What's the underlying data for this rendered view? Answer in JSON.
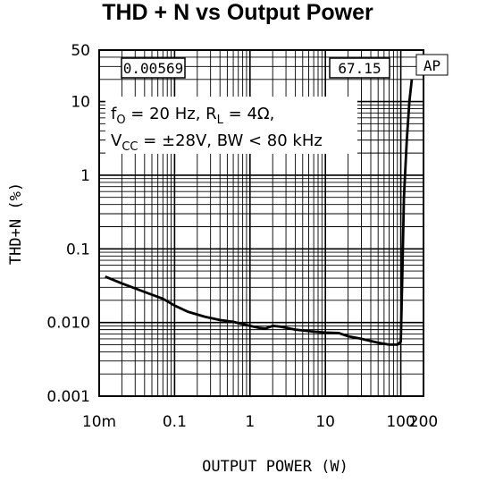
{
  "chart_data": {
    "type": "line",
    "title": "THD + N vs Output Power",
    "xlabel": "OUTPUT POWER (W)",
    "ylabel": "THD+N (%)",
    "xscale": "log",
    "yscale": "log",
    "xlim": [
      0.01,
      200
    ],
    "ylim": [
      0.001,
      50
    ],
    "xticks": [
      {
        "value": 0.01,
        "label": "10m"
      },
      {
        "value": 0.1,
        "label": "0.1"
      },
      {
        "value": 1,
        "label": "1"
      },
      {
        "value": 10,
        "label": "10"
      },
      {
        "value": 100,
        "label": "100"
      },
      {
        "value": 200,
        "label": "200"
      }
    ],
    "yticks": [
      {
        "value": 50,
        "label": "50"
      },
      {
        "value": 10,
        "label": "10"
      },
      {
        "value": 1,
        "label": "1"
      },
      {
        "value": 0.1,
        "label": "0.1"
      },
      {
        "value": 0.01,
        "label": "0.010"
      },
      {
        "value": 0.001,
        "label": "0.001"
      }
    ],
    "grid": true,
    "series": [
      {
        "x": [
          0.012,
          0.02,
          0.04,
          0.07,
          0.1,
          0.15,
          0.25,
          0.4,
          0.6,
          0.8,
          1.0,
          1.3,
          1.6,
          2.0,
          2.5,
          3.0,
          4.0,
          5.0,
          7.0,
          10,
          15,
          20,
          30,
          50,
          70,
          90,
          100,
          105,
          110,
          120,
          130,
          140
        ],
        "y": [
          0.042,
          0.034,
          0.026,
          0.021,
          0.017,
          0.014,
          0.012,
          0.0108,
          0.0102,
          0.0095,
          0.009,
          0.0085,
          0.0083,
          0.009,
          0.0088,
          0.0085,
          0.008,
          0.0078,
          0.0075,
          0.0073,
          0.0072,
          0.0065,
          0.006,
          0.0053,
          0.005,
          0.005,
          0.0055,
          0.05,
          0.5,
          3,
          10,
          20
        ]
      }
    ],
    "annotations": {
      "box_left": "0.00569",
      "box_right": "67.15",
      "logo": "AP",
      "line1": {
        "f": "f",
        "f_sub": "O",
        "f_rest": " = 20 Hz, R",
        "r_sub": "L",
        "r_rest": " = 4Ω,"
      },
      "line2": {
        "v": "V",
        "v_sub": "CC",
        "v_rest": " = ±28V, BW < 80 kHz"
      }
    }
  }
}
